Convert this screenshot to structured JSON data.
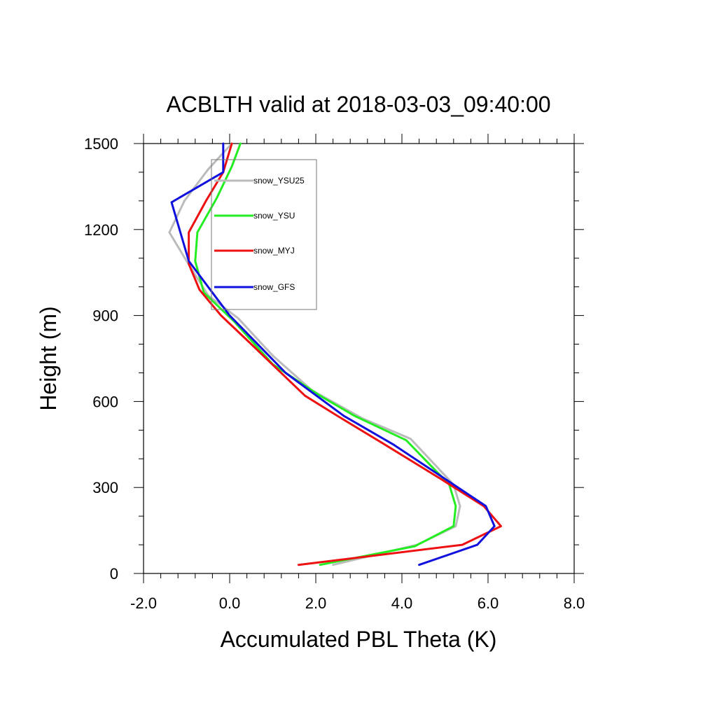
{
  "chart_data": {
    "type": "line",
    "title": "ACBLTH valid at 2018-03-03_09:40:00",
    "xlabel": "Accumulated PBL Theta (K)",
    "ylabel": "Height (m)",
    "xlim": [
      -2.0,
      8.0
    ],
    "ylim": [
      0,
      1500
    ],
    "xticks": [
      -2.0,
      0.0,
      2.0,
      4.0,
      6.0,
      8.0
    ],
    "xtick_labels": [
      "-2.0",
      "0.0",
      "2.0",
      "4.0",
      "6.0",
      "8.0"
    ],
    "yticks": [
      0,
      300,
      600,
      900,
      1200,
      1500
    ],
    "ytick_labels": [
      "0",
      "300",
      "600",
      "900",
      "1200",
      "1500"
    ],
    "grid": false,
    "legend_placement": "top-left",
    "series": [
      {
        "name": "snow_YSU25",
        "color": "#bbbbbb",
        "points": [
          [
            2.4,
            30
          ],
          [
            4.35,
            100
          ],
          [
            5.25,
            165
          ],
          [
            5.35,
            235
          ],
          [
            5.2,
            310
          ],
          [
            4.2,
            470
          ],
          [
            3.1,
            540
          ],
          [
            1.9,
            640
          ],
          [
            1.0,
            760
          ],
          [
            0.2,
            890
          ],
          [
            -0.5,
            970
          ],
          [
            -1.0,
            1090
          ],
          [
            -1.4,
            1190
          ],
          [
            -1.05,
            1300
          ],
          [
            -0.5,
            1410
          ],
          [
            0.05,
            1500
          ]
        ],
        "stroke": 3
      },
      {
        "name": "snow_YSU",
        "color": "#22ee22",
        "points": [
          [
            2.1,
            30
          ],
          [
            4.3,
            95
          ],
          [
            5.2,
            165
          ],
          [
            5.25,
            235
          ],
          [
            5.1,
            310
          ],
          [
            4.1,
            465
          ],
          [
            2.9,
            550
          ],
          [
            2.1,
            620
          ],
          [
            1.0,
            730
          ],
          [
            0.1,
            880
          ],
          [
            -0.6,
            980
          ],
          [
            -0.8,
            1090
          ],
          [
            -0.75,
            1190
          ],
          [
            -0.3,
            1310
          ],
          [
            0.05,
            1420
          ],
          [
            0.25,
            1500
          ]
        ],
        "stroke": 3
      },
      {
        "name": "snow_MYJ",
        "color": "#ee1111",
        "points": [
          [
            1.6,
            30
          ],
          [
            5.4,
            100
          ],
          [
            6.3,
            165
          ],
          [
            5.9,
            235
          ],
          [
            4.9,
            330
          ],
          [
            3.6,
            450
          ],
          [
            2.5,
            550
          ],
          [
            1.75,
            620
          ],
          [
            0.5,
            800
          ],
          [
            -0.2,
            900
          ],
          [
            -0.7,
            990
          ],
          [
            -0.95,
            1080
          ],
          [
            -0.95,
            1190
          ],
          [
            -0.55,
            1300
          ],
          [
            -0.15,
            1400
          ],
          [
            0.05,
            1500
          ]
        ],
        "stroke": 3
      },
      {
        "name": "snow_GFS",
        "color": "#1111dd",
        "points": [
          [
            4.4,
            30
          ],
          [
            5.75,
            100
          ],
          [
            6.15,
            165
          ],
          [
            5.95,
            235
          ],
          [
            5.0,
            330
          ],
          [
            3.8,
            450
          ],
          [
            2.65,
            550
          ],
          [
            1.3,
            700
          ],
          [
            0.0,
            900
          ],
          [
            -0.45,
            990
          ],
          [
            -0.95,
            1090
          ],
          [
            -1.35,
            1295
          ],
          [
            -0.15,
            1400
          ],
          [
            -0.15,
            1500
          ]
        ],
        "stroke": 3
      }
    ]
  }
}
